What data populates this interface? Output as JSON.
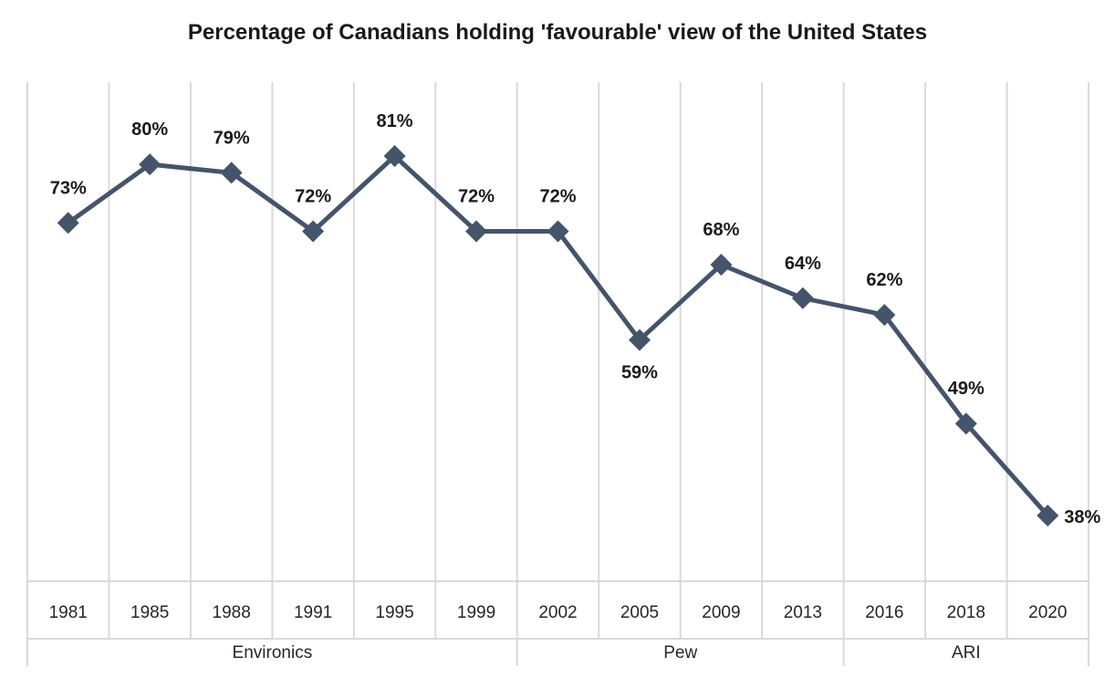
{
  "chart_data": {
    "type": "line",
    "title": "Percentage of Canadians holding 'favourable' view of the United States",
    "categories": [
      "1981",
      "1985",
      "1988",
      "1991",
      "1995",
      "1999",
      "2002",
      "2005",
      "2009",
      "2013",
      "2016",
      "2018",
      "2020"
    ],
    "values": [
      73,
      80,
      79,
      72,
      81,
      72,
      72,
      59,
      68,
      64,
      62,
      49,
      38
    ],
    "data_labels": [
      "73%",
      "80%",
      "79%",
      "72%",
      "81%",
      "72%",
      "72%",
      "59%",
      "68%",
      "64%",
      "62%",
      "49%",
      "38%"
    ],
    "groups": [
      {
        "label": "Environics",
        "count": 6
      },
      {
        "label": "Pew",
        "count": 4
      },
      {
        "label": "ARI",
        "count": 3
      }
    ],
    "xlabel": "",
    "ylabel": "",
    "ylim": [
      30,
      90
    ],
    "grid": "vertical",
    "legend": "none",
    "line_color": "#44546a"
  }
}
